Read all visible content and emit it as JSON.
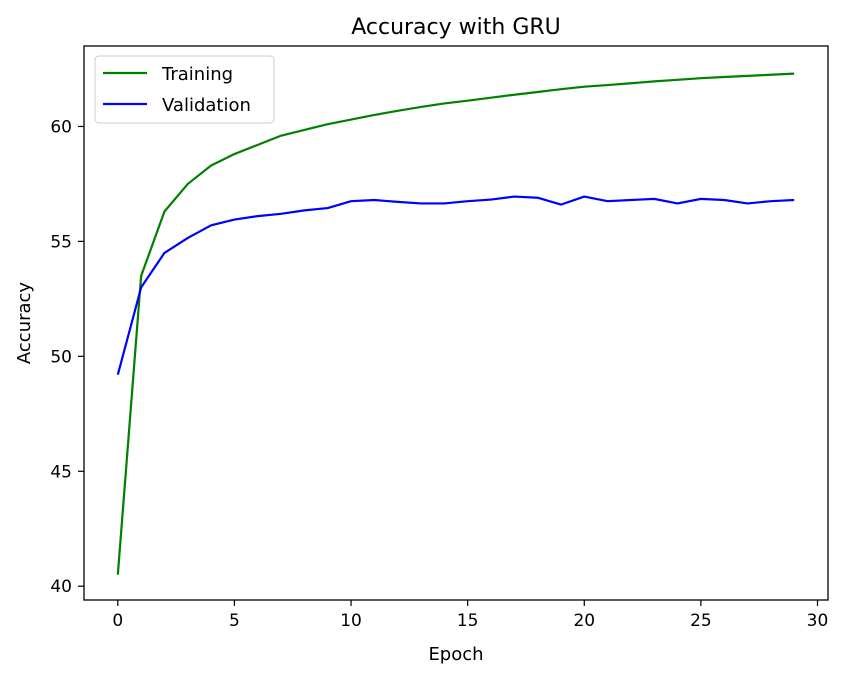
{
  "chart_data": {
    "type": "line",
    "title": "Accuracy with GRU",
    "xlabel": "Epoch",
    "ylabel": "Accuracy",
    "xlim": [
      -1.45,
      30.45
    ],
    "ylim": [
      39.4,
      63.5
    ],
    "xticks": [
      0,
      5,
      10,
      15,
      20,
      25,
      30
    ],
    "yticks": [
      40,
      45,
      50,
      55,
      60
    ],
    "grid": false,
    "legend_position": "top-left",
    "x": [
      0,
      1,
      2,
      3,
      4,
      5,
      6,
      7,
      8,
      9,
      10,
      11,
      12,
      13,
      14,
      15,
      16,
      17,
      18,
      19,
      20,
      21,
      22,
      23,
      24,
      25,
      26,
      27,
      28,
      29
    ],
    "series": [
      {
        "name": "Training",
        "color": "#008000",
        "values": [
          40.5,
          53.5,
          56.3,
          57.5,
          58.3,
          58.8,
          59.2,
          59.6,
          59.85,
          60.1,
          60.3,
          60.5,
          60.68,
          60.85,
          61.0,
          61.12,
          61.25,
          61.38,
          61.5,
          61.62,
          61.73,
          61.8,
          61.88,
          61.96,
          62.03,
          62.1,
          62.15,
          62.2,
          62.25,
          62.3
        ]
      },
      {
        "name": "Validation",
        "color": "#0000ff",
        "values": [
          49.2,
          53.0,
          54.5,
          55.15,
          55.7,
          55.95,
          56.1,
          56.2,
          56.35,
          56.45,
          56.75,
          56.8,
          56.72,
          56.65,
          56.65,
          56.75,
          56.82,
          56.95,
          56.9,
          56.6,
          56.95,
          56.75,
          56.8,
          56.85,
          56.65,
          56.85,
          56.8,
          56.65,
          56.75,
          56.8
        ]
      }
    ]
  }
}
